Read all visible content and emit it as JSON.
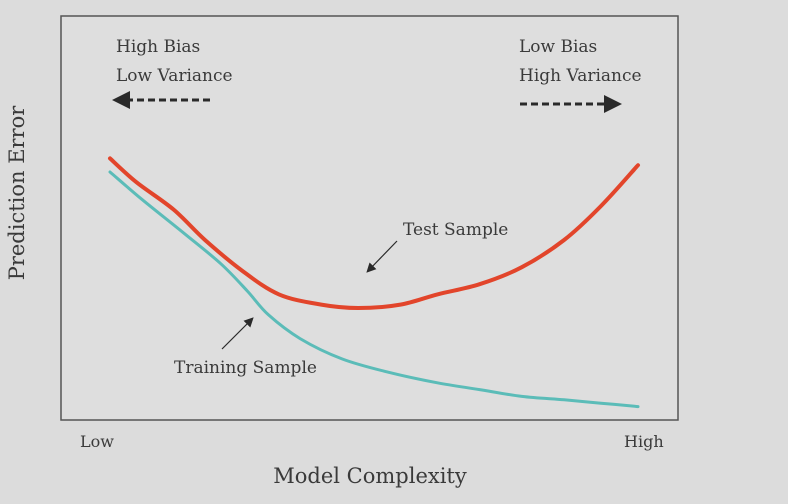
{
  "chart_data": {
    "type": "line",
    "xlabel": "Model Complexity",
    "ylabel": "Prediction Error",
    "x_tick_labels": [
      "Low",
      "High"
    ],
    "xlim": [
      0,
      1
    ],
    "ylim": [
      0,
      1
    ],
    "grid": false,
    "series": [
      {
        "name": "Test Sample",
        "color": "#e2452b",
        "x": [
          0,
          0.05,
          0.12,
          0.18,
          0.25,
          0.32,
          0.4,
          0.47,
          0.55,
          0.62,
          0.7,
          0.78,
          0.86,
          0.93,
          1.0
        ],
        "y": [
          0.74,
          0.67,
          0.59,
          0.5,
          0.41,
          0.34,
          0.31,
          0.3,
          0.31,
          0.34,
          0.37,
          0.42,
          0.5,
          0.6,
          0.72
        ]
      },
      {
        "name": "Training Sample",
        "color": "#5bbcb8",
        "x": [
          0,
          0.06,
          0.14,
          0.21,
          0.26,
          0.3,
          0.36,
          0.44,
          0.53,
          0.62,
          0.7,
          0.78,
          0.86,
          0.93,
          1.0
        ],
        "y": [
          0.7,
          0.62,
          0.52,
          0.43,
          0.35,
          0.28,
          0.21,
          0.15,
          0.11,
          0.08,
          0.06,
          0.04,
          0.03,
          0.02,
          0.01
        ]
      }
    ],
    "annotations": [
      {
        "id": "top-left",
        "lines": [
          "High Bias",
          "Low Variance"
        ]
      },
      {
        "id": "top-right",
        "lines": [
          "Low Bias",
          "High Variance"
        ]
      },
      {
        "id": "test-label",
        "text": "Test Sample"
      },
      {
        "id": "train-label",
        "text": "Training Sample"
      }
    ]
  }
}
